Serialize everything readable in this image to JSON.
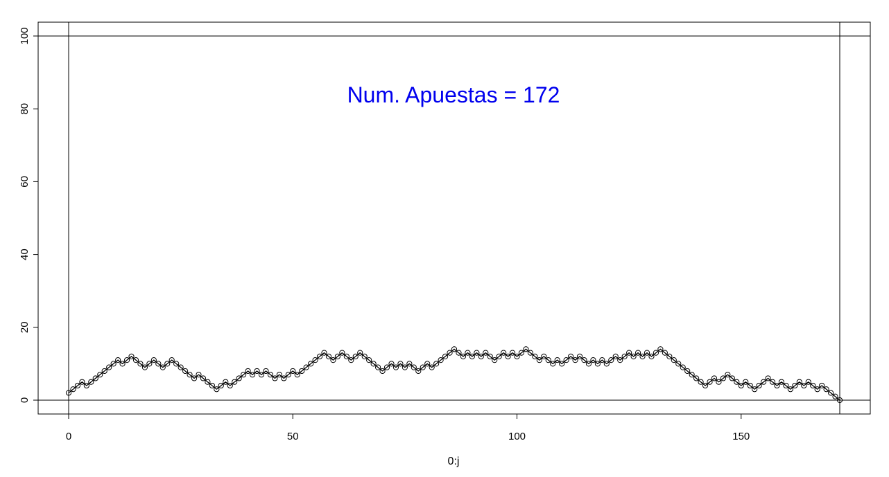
{
  "chart_data": {
    "type": "line",
    "title": "",
    "xlabel": "0:j",
    "ylabel": "",
    "annotation": "Num. Apuestas = 172",
    "annotation_color": "#0000ee",
    "line_color": "#000000",
    "xlim": [
      0,
      172
    ],
    "ylim": [
      0,
      100
    ],
    "x_ticks": [
      0,
      50,
      100,
      150
    ],
    "y_ticks": [
      0,
      20,
      40,
      60,
      80,
      100
    ],
    "reference_lines": {
      "horizontal": [
        0,
        100
      ],
      "vertical": [
        0,
        172
      ]
    },
    "grid": false,
    "series": [
      {
        "values": [
          2,
          3,
          4,
          5,
          4,
          5,
          6,
          7,
          8,
          9,
          10,
          11,
          10,
          11,
          12,
          11,
          10,
          9,
          10,
          11,
          10,
          9,
          10,
          11,
          10,
          9,
          8,
          7,
          6,
          7,
          6,
          5,
          4,
          3,
          4,
          5,
          4,
          5,
          6,
          7,
          8,
          7,
          8,
          7,
          8,
          7,
          6,
          7,
          6,
          7,
          8,
          7,
          8,
          9,
          10,
          11,
          12,
          13,
          12,
          11,
          12,
          13,
          12,
          11,
          12,
          13,
          12,
          11,
          10,
          9,
          8,
          9,
          10,
          9,
          10,
          9,
          10,
          9,
          8,
          9,
          10,
          9,
          10,
          11,
          12,
          13,
          14,
          13,
          12,
          13,
          12,
          13,
          12,
          13,
          12,
          11,
          12,
          13,
          12,
          13,
          12,
          13,
          14,
          13,
          12,
          11,
          12,
          11,
          10,
          11,
          10,
          11,
          12,
          11,
          12,
          11,
          10,
          11,
          10,
          11,
          10,
          11,
          12,
          11,
          12,
          13,
          12,
          13,
          12,
          13,
          12,
          13,
          14,
          13,
          12,
          11,
          10,
          9,
          8,
          7,
          6,
          5,
          4,
          5,
          6,
          5,
          6,
          7,
          6,
          5,
          4,
          5,
          4,
          3,
          4,
          5,
          6,
          5,
          4,
          5,
          4,
          3,
          4,
          5,
          4,
          5,
          4,
          3,
          4,
          3,
          2,
          1,
          0
        ]
      }
    ]
  }
}
